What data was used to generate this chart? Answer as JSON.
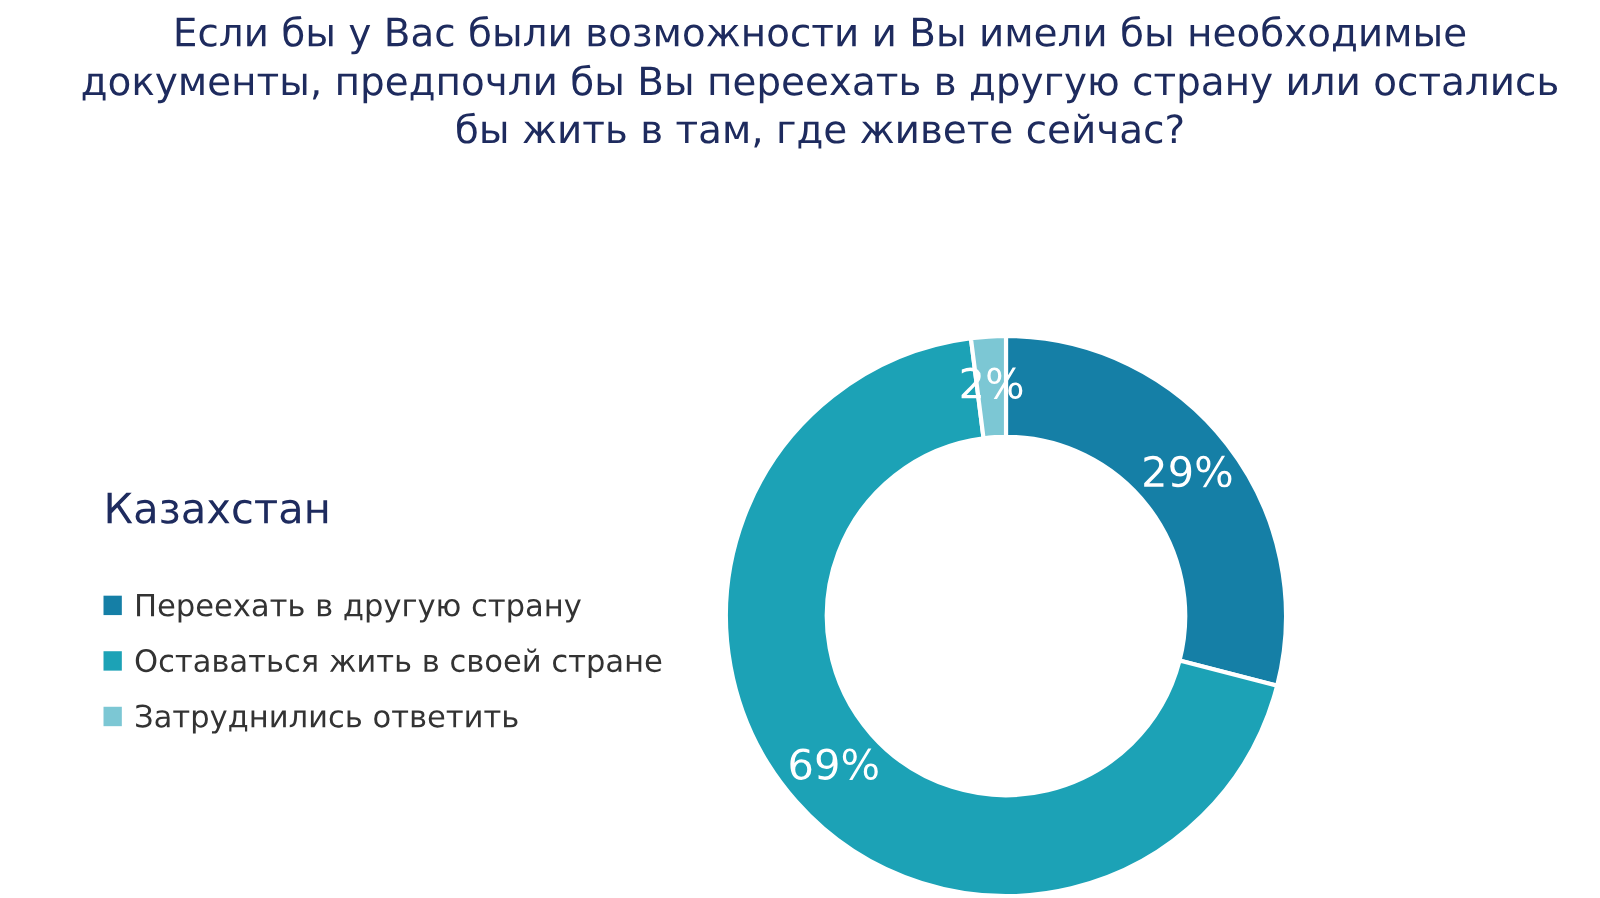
{
  "chart_data": {
    "type": "donut",
    "title": "Если бы у Вас были возможности и Вы имели бы необходимые\nдокументы, предпочли бы Вы переехать в другую страну или остались\nбы жить в там, где живете сейчас?",
    "legend_title": "Казахстан",
    "categories": [
      "Переехать в другую страну",
      "Оставаться жить в своей стране",
      "Затруднились ответить"
    ],
    "values": [
      29,
      69,
      2
    ],
    "value_labels": [
      "29%",
      "69%",
      "2%"
    ],
    "colors": [
      "#157fa6",
      "#1ca2b6",
      "#7cc7d4"
    ],
    "legend": "left"
  }
}
